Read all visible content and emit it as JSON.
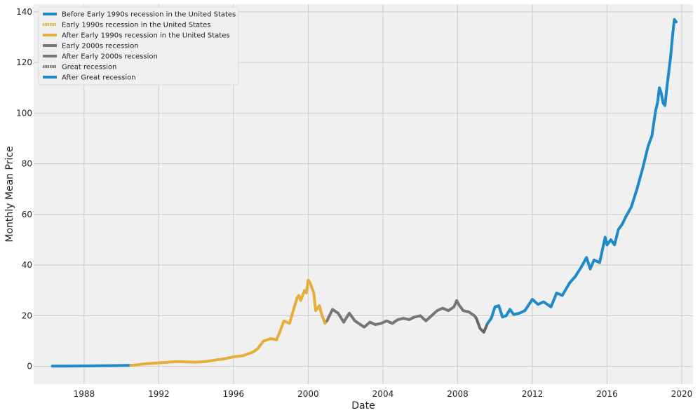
{
  "chart_data": {
    "type": "line",
    "xlabel": "Date",
    "ylabel": "Monthly Mean Price",
    "xlim": [
      1985.3,
      2020.6
    ],
    "ylim": [
      -7,
      143
    ],
    "x_ticks": [
      1988,
      1992,
      1996,
      2000,
      2004,
      2008,
      2012,
      2016,
      2020
    ],
    "x_tick_labels": [
      "1988",
      "1992",
      "1996",
      "2000",
      "2004",
      "2008",
      "2012",
      "2016",
      "2020"
    ],
    "y_ticks": [
      0,
      20,
      40,
      60,
      80,
      100,
      120,
      140
    ],
    "y_tick_labels": [
      "0",
      "20",
      "40",
      "60",
      "80",
      "100",
      "120",
      "140"
    ],
    "grid": true,
    "legend_position": "top-left",
    "colors": {
      "plot_background": "#f0f0f0",
      "grid": "#cbcbcb",
      "blue": "#1f8ac8",
      "orange": "#e5ae38",
      "gray": "#7a7377",
      "dark_gray": "#6d6568"
    },
    "legend": [
      {
        "name": "Before Early 1990s recession in the United States",
        "color": "#1f8ac8",
        "dotted": false
      },
      {
        "name": "Early 1990s recession in the United States",
        "color": "#e5ae38",
        "dotted": true
      },
      {
        "name": "After Early 1990s recession in the United States",
        "color": "#e5ae38",
        "dotted": false
      },
      {
        "name": "Early 2000s recession",
        "color": "#7a7377",
        "dotted": false
      },
      {
        "name": "After Early 2000s recession",
        "color": "#7a7377",
        "dotted": false
      },
      {
        "name": "Great recession",
        "color": "#6d6568",
        "dotted": true
      },
      {
        "name": "After Great recession",
        "color": "#1f8ac8",
        "dotted": false
      }
    ],
    "series": [
      {
        "name": "Before Early 1990s recession in the United States",
        "color": "#1f8ac8",
        "x": [
          1986.3,
          1987.0,
          1988.0,
          1989.0,
          1990.0,
          1990.5
        ],
        "values": [
          0.1,
          0.15,
          0.2,
          0.25,
          0.35,
          0.45
        ]
      },
      {
        "name": "Early 1990s recession in the United States",
        "color": "#e5ae38",
        "x": [
          1990.5,
          1990.8,
          1991.0,
          1991.2
        ],
        "values": [
          0.45,
          0.6,
          0.8,
          1.0
        ]
      },
      {
        "name": "After Early 1990s recession in the United States",
        "color": "#e5ae38",
        "x": [
          1991.2,
          1992.0,
          1992.5,
          1993.0,
          1993.5,
          1994.0,
          1994.5,
          1995.0,
          1995.5,
          1996.0,
          1996.5,
          1997.0,
          1997.3,
          1997.6,
          1998.0,
          1998.3,
          1998.5,
          1998.7,
          1999.0,
          1999.2,
          1999.4,
          1999.5,
          1999.6,
          1999.8,
          1999.9,
          2000.0,
          2000.1,
          2000.3,
          2000.4,
          2000.6,
          2000.7,
          2000.8,
          2000.9,
          2001.0
        ],
        "values": [
          1.0,
          1.4,
          1.7,
          1.9,
          1.8,
          1.7,
          1.9,
          2.5,
          3.0,
          3.8,
          4.2,
          5.5,
          7.0,
          10.0,
          11.0,
          10.5,
          14.0,
          18.0,
          17.0,
          22.0,
          27.0,
          28.0,
          26.0,
          30.0,
          29.0,
          34.0,
          33.0,
          29.0,
          22.0,
          24.0,
          21.0,
          19.0,
          17.0,
          18.0
        ]
      },
      {
        "name": "Early 2000s recession",
        "color": "#7a7377",
        "x": [
          2001.0,
          2001.3,
          2001.6,
          2001.9
        ],
        "values": [
          18.0,
          22.5,
          21.0,
          17.5
        ]
      },
      {
        "name": "After Early 2000s recession",
        "color": "#7a7377",
        "x": [
          2001.9,
          2002.2,
          2002.5,
          2002.8,
          2003.0,
          2003.3,
          2003.6,
          2003.9,
          2004.2,
          2004.5,
          2004.8,
          2005.1,
          2005.4,
          2005.7,
          2006.0,
          2006.3,
          2006.6,
          2006.9,
          2007.2,
          2007.5,
          2007.8,
          2007.95,
          2008.1,
          2008.3,
          2008.6,
          2008.9,
          2009.0
        ],
        "values": [
          17.5,
          21.0,
          18.0,
          16.5,
          15.5,
          17.5,
          16.5,
          17.0,
          18.0,
          17.0,
          18.5,
          19.0,
          18.5,
          19.5,
          20.0,
          18.0,
          20.0,
          22.0,
          23.0,
          22.0,
          23.5,
          26.0,
          24.0,
          22.0,
          21.5,
          20.0,
          19.0
        ]
      },
      {
        "name": "Great recession",
        "color": "#6d6568",
        "x": [
          2009.0,
          2009.2,
          2009.4,
          2009.6
        ],
        "values": [
          19.0,
          15.0,
          13.5,
          17.0
        ]
      },
      {
        "name": "After Great recession",
        "color": "#1f8ac8",
        "x": [
          2009.6,
          2009.8,
          2010.0,
          2010.2,
          2010.4,
          2010.6,
          2010.8,
          2011.0,
          2011.3,
          2011.6,
          2012.0,
          2012.3,
          2012.6,
          2013.0,
          2013.3,
          2013.6,
          2014.0,
          2014.3,
          2014.6,
          2014.9,
          2015.1,
          2015.3,
          2015.6,
          2015.9,
          2016.0,
          2016.2,
          2016.4,
          2016.6,
          2016.8,
          2017.0,
          2017.3,
          2017.6,
          2017.9,
          2018.0,
          2018.2,
          2018.4,
          2018.6,
          2018.7,
          2018.8,
          2018.9,
          2019.0,
          2019.1,
          2019.2,
          2019.4,
          2019.5,
          2019.6,
          2019.7
        ],
        "values": [
          17.0,
          19.0,
          23.5,
          24.0,
          19.5,
          20.0,
          22.5,
          20.5,
          21.0,
          22.0,
          26.5,
          24.5,
          25.5,
          23.5,
          29.0,
          28.0,
          33.0,
          35.5,
          39.0,
          43.0,
          38.5,
          42.0,
          41.0,
          51.0,
          48.0,
          50.0,
          48.0,
          54.0,
          56.0,
          59.0,
          63.0,
          70.0,
          78.0,
          81.0,
          87.0,
          91.0,
          101.0,
          104.0,
          110.0,
          108.0,
          104.0,
          103.0,
          110.0,
          122.0,
          130.0,
          137.0,
          136.0
        ]
      }
    ]
  }
}
